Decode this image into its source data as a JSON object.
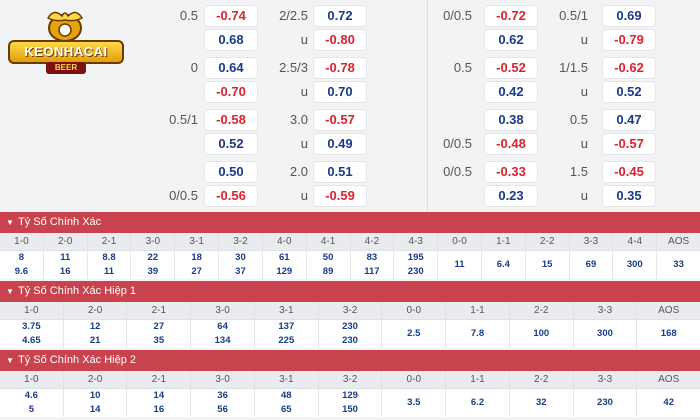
{
  "logo": {
    "text": "KEONHACAI",
    "sub": "BEER"
  },
  "odds_left": [
    {
      "line1": "0.5",
      "a1": "-0.74",
      "a2": "0.68",
      "line2": "2/2.5",
      "b1": "0.72",
      "b2_label": "u",
      "b2": "-0.80",
      "line_pos": "top"
    },
    {
      "line1": "0",
      "a1": "0.64",
      "a2": "-0.70",
      "line2": "2.5/3",
      "b1": "-0.78",
      "b2_label": "u",
      "b2": "0.70",
      "line_pos": "top"
    },
    {
      "line1": "0.5/1",
      "a1": "-0.58",
      "a2": "0.52",
      "line2": "3.0",
      "b1": "-0.57",
      "b2_label": "u",
      "b2": "0.49",
      "line_pos": "top"
    },
    {
      "line1": "0/0.5",
      "a1": "0.50",
      "a2": "-0.56",
      "line2": "2.0",
      "b1": "0.51",
      "b2_label": "u",
      "b2": "-0.59",
      "line_pos": "bottom"
    }
  ],
  "odds_right": [
    {
      "line1": "0/0.5",
      "a1": "-0.72",
      "a2": "0.62",
      "line2": "0.5/1",
      "b1": "0.69",
      "b2_label": "u",
      "b2": "-0.79",
      "line_pos": "top"
    },
    {
      "line1": "0.5",
      "a1": "-0.52",
      "a2": "0.42",
      "line2": "1/1.5",
      "b1": "-0.62",
      "b2_label": "u",
      "b2": "0.52",
      "line_pos": "top"
    },
    {
      "line1": "0/0.5",
      "a1": "0.38",
      "a2": "-0.48",
      "line2": "0.5",
      "b1": "0.47",
      "b2_label": "u",
      "b2": "-0.57",
      "line_pos": "bottom"
    },
    {
      "line1": "0/0.5",
      "a1": "-0.33",
      "a2": "0.23",
      "line2": "1.5",
      "b1": "-0.45",
      "b2_label": "u",
      "b2": "0.35",
      "line_pos": "top"
    }
  ],
  "sections": [
    {
      "title": "Tỷ Số Chính Xác",
      "headers": [
        "1-0",
        "2-0",
        "2-1",
        "3-0",
        "3-1",
        "3-2",
        "4-0",
        "4-1",
        "4-2",
        "4-3",
        "0-0",
        "1-1",
        "2-2",
        "3-3",
        "4-4",
        "AOS"
      ],
      "rows": [
        [
          "8",
          "11",
          "8.8",
          "22",
          "18",
          "30",
          "61",
          "50",
          "83",
          "195",
          "11",
          "6.4",
          "15",
          "69",
          "300",
          "33"
        ],
        [
          "9.6",
          "16",
          "11",
          "39",
          "27",
          "37",
          "129",
          "89",
          "117",
          "230",
          "",
          "",
          "",
          "",
          "",
          ""
        ]
      ]
    },
    {
      "title": "Tỷ Số Chính Xác Hiệp 1",
      "headers": [
        "1-0",
        "2-0",
        "2-1",
        "3-0",
        "3-1",
        "3-2",
        "0-0",
        "1-1",
        "2-2",
        "3-3",
        "AOS"
      ],
      "rows": [
        [
          "3.75",
          "12",
          "27",
          "64",
          "137",
          "230",
          "2.5",
          "7.8",
          "100",
          "300",
          "168"
        ],
        [
          "4.65",
          "21",
          "35",
          "134",
          "225",
          "230",
          "",
          "",
          "",
          "",
          ""
        ]
      ]
    },
    {
      "title": "Tỷ Số Chính Xác Hiệp 2",
      "headers": [
        "1-0",
        "2-0",
        "2-1",
        "3-0",
        "3-1",
        "3-2",
        "0-0",
        "1-1",
        "2-2",
        "3-3",
        "AOS"
      ],
      "rows": [
        [
          "4.6",
          "10",
          "14",
          "36",
          "48",
          "129",
          "3.5",
          "6.2",
          "32",
          "230",
          "42"
        ],
        [
          "5",
          "14",
          "16",
          "56",
          "65",
          "150",
          "",
          "",
          "",
          "",
          ""
        ]
      ]
    }
  ]
}
